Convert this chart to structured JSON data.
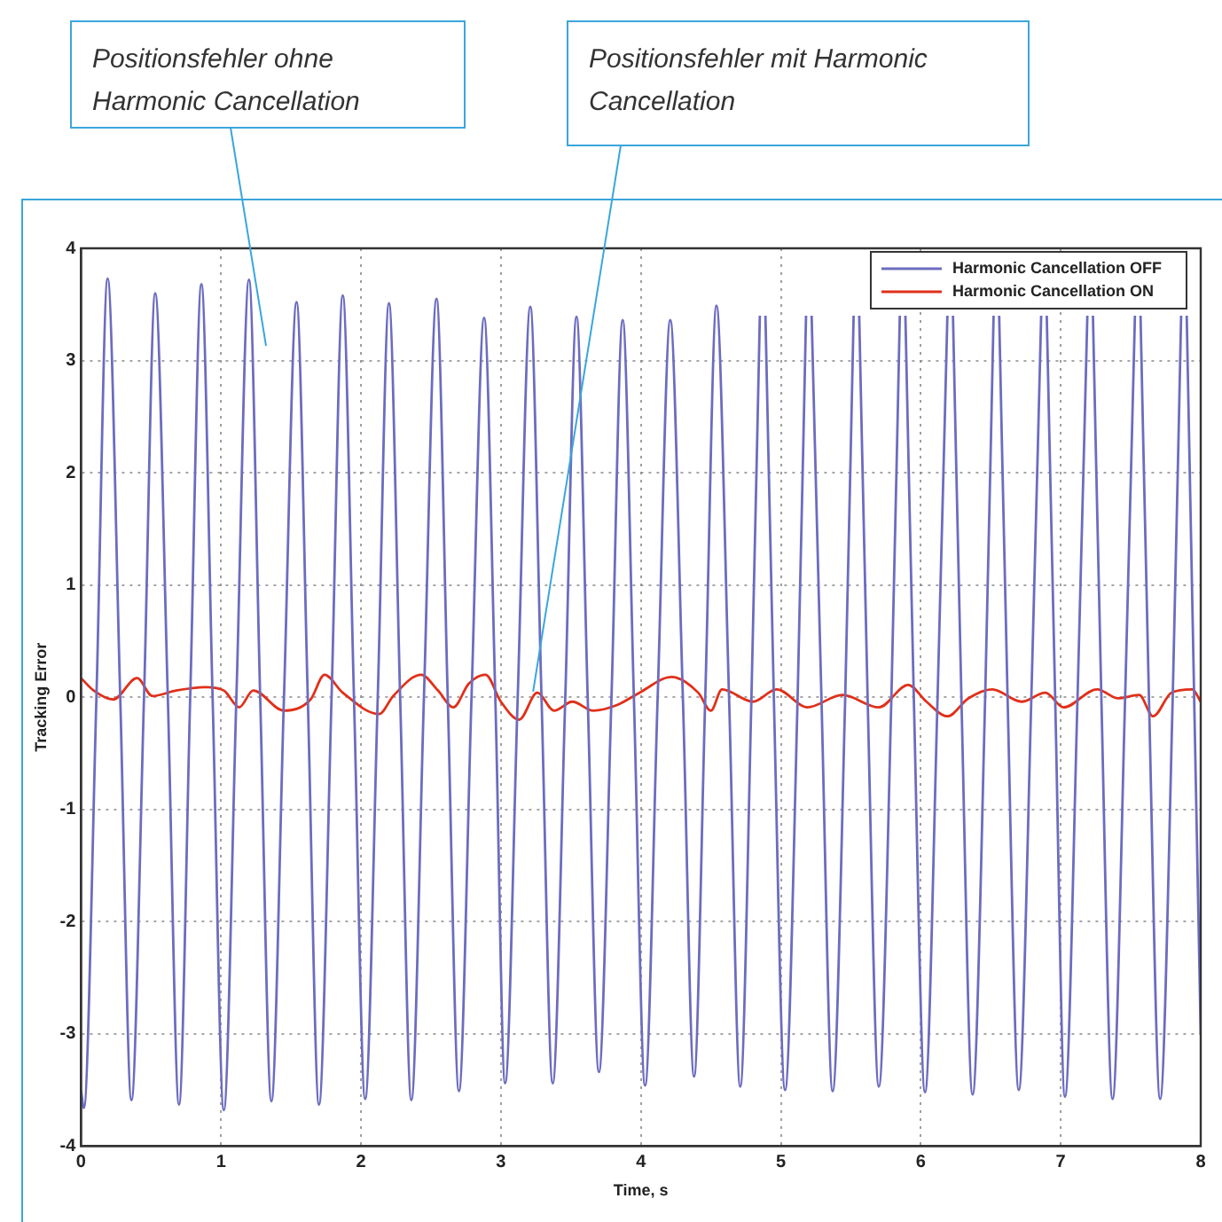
{
  "chart_data": {
    "type": "line",
    "xlabel": "Time, s",
    "ylabel": "Tracking Error",
    "xlim": [
      0,
      8
    ],
    "xticks": [
      0,
      1,
      2,
      3,
      4,
      5,
      6,
      7,
      8
    ],
    "ylim": [
      -4,
      4
    ],
    "yticks": [
      -4,
      -3,
      -2,
      -1,
      0,
      1,
      2,
      3,
      4
    ],
    "grid": true,
    "legend": "top right",
    "marker": "none",
    "line_style": "solid",
    "annotations": [
      "Positionsfehler ohne Harmonic Cancellation",
      {
        "text": "Positionsfehler mit Harmonic Cancellation",
        "x": 3.23,
        "y": 0.05
      }
    ],
    "series": [
      {
        "name": "Harmonic Cancellation OFF",
        "color": "#6c6cc0",
        "x": [
          0,
          0.02,
          0.11,
          0.19,
          0.28,
          0.36,
          0.45,
          0.53,
          0.62,
          0.7,
          0.78,
          0.86,
          0.94,
          1.02,
          1.11,
          1.2,
          1.28,
          1.36,
          1.45,
          1.54,
          1.62,
          1.7,
          1.79,
          1.87,
          1.95,
          2.03,
          2.12,
          2.2,
          2.28,
          2.36,
          2.45,
          2.54,
          2.62,
          2.7,
          2.79,
          2.88,
          2.96,
          3.03,
          3.12,
          3.21,
          3.29,
          3.37,
          3.46,
          3.54,
          3.62,
          3.7,
          3.79,
          3.87,
          3.95,
          4.03,
          4.12,
          4.21,
          4.3,
          4.38,
          4.46,
          4.54,
          4.63,
          4.71,
          4.79,
          4.85,
          4.87,
          4.89,
          4.95,
          5.03,
          5.12,
          5.18,
          5.2,
          5.22,
          5.29,
          5.37,
          5.46,
          5.52,
          5.54,
          5.56,
          5.62,
          5.7,
          5.79,
          5.85,
          5.87,
          5.89,
          5.95,
          6.03,
          6.12,
          6.19,
          6.21,
          6.23,
          6.29,
          6.37,
          6.46,
          6.52,
          6.54,
          6.56,
          6.62,
          6.7,
          6.79,
          6.86,
          6.88,
          6.9,
          6.96,
          7.03,
          7.12,
          7.19,
          7.21,
          7.23,
          7.29,
          7.37,
          7.46,
          7.53,
          7.55,
          7.57,
          7.63,
          7.71,
          7.8,
          7.86,
          7.88,
          7.9,
          8
        ],
        "values": [
          -3.5,
          -3.66,
          0,
          3.73,
          0,
          -3.59,
          0,
          3.6,
          0,
          -3.63,
          0,
          3.68,
          0,
          -3.68,
          0,
          3.72,
          0,
          -3.6,
          0,
          3.52,
          0,
          -3.63,
          0,
          3.58,
          0,
          -3.58,
          0,
          3.51,
          0,
          -3.59,
          0,
          3.55,
          0,
          -3.51,
          0,
          3.38,
          0,
          -3.44,
          0,
          3.48,
          0,
          -3.44,
          0,
          3.39,
          0,
          -3.34,
          0,
          3.36,
          0,
          -3.46,
          0,
          3.36,
          0,
          -3.38,
          0,
          3.49,
          0,
          -3.47,
          0,
          3.4,
          null,
          3.4,
          0,
          -3.5,
          0,
          3.4,
          null,
          3.4,
          0,
          -3.51,
          0,
          3.4,
          null,
          3.4,
          0,
          -3.47,
          0,
          3.4,
          null,
          3.4,
          0,
          -3.52,
          0,
          3.4,
          null,
          3.4,
          0,
          -3.54,
          0,
          3.4,
          null,
          3.4,
          0,
          -3.5,
          0,
          3.4,
          null,
          3.4,
          0,
          -3.56,
          0,
          3.4,
          null,
          3.4,
          0,
          -3.58,
          0,
          3.4,
          null,
          3.4,
          0,
          -3.58,
          0,
          3.4,
          null,
          3.4,
          -3.0
        ]
      },
      {
        "name": "Harmonic Cancellation ON",
        "color": "#e0301a",
        "x": [
          0,
          0.09,
          0.23,
          0.4,
          0.51,
          0.68,
          0.89,
          1.02,
          1.13,
          1.23,
          1.45,
          1.64,
          1.74,
          1.87,
          2.13,
          2.23,
          2.43,
          2.55,
          2.66,
          2.77,
          2.89,
          3.0,
          3.13,
          3.26,
          3.38,
          3.51,
          3.66,
          3.83,
          3.99,
          4.22,
          4.41,
          4.5,
          4.58,
          4.8,
          4.97,
          5.19,
          5.44,
          5.7,
          5.91,
          6.04,
          6.19,
          6.34,
          6.51,
          6.72,
          6.89,
          7.02,
          7.26,
          7.41,
          7.56,
          7.66,
          7.79,
          7.94,
          8
        ],
        "values": [
          0.17,
          0.06,
          -0.02,
          0.17,
          0.01,
          0.06,
          0.09,
          0.06,
          -0.09,
          0.06,
          -0.12,
          -0.02,
          0.2,
          0.04,
          -0.15,
          0.01,
          0.2,
          0.06,
          -0.09,
          0.12,
          0.2,
          -0.04,
          -0.2,
          0.04,
          -0.12,
          -0.04,
          -0.12,
          -0.07,
          0.04,
          0.18,
          0.04,
          -0.12,
          0.07,
          -0.04,
          0.07,
          -0.09,
          0.02,
          -0.09,
          0.11,
          -0.04,
          -0.17,
          -0.01,
          0.07,
          -0.04,
          0.04,
          -0.09,
          0.07,
          -0.01,
          0.02,
          -0.17,
          0.04,
          0.07,
          -0.04
        ]
      }
    ]
  }
}
